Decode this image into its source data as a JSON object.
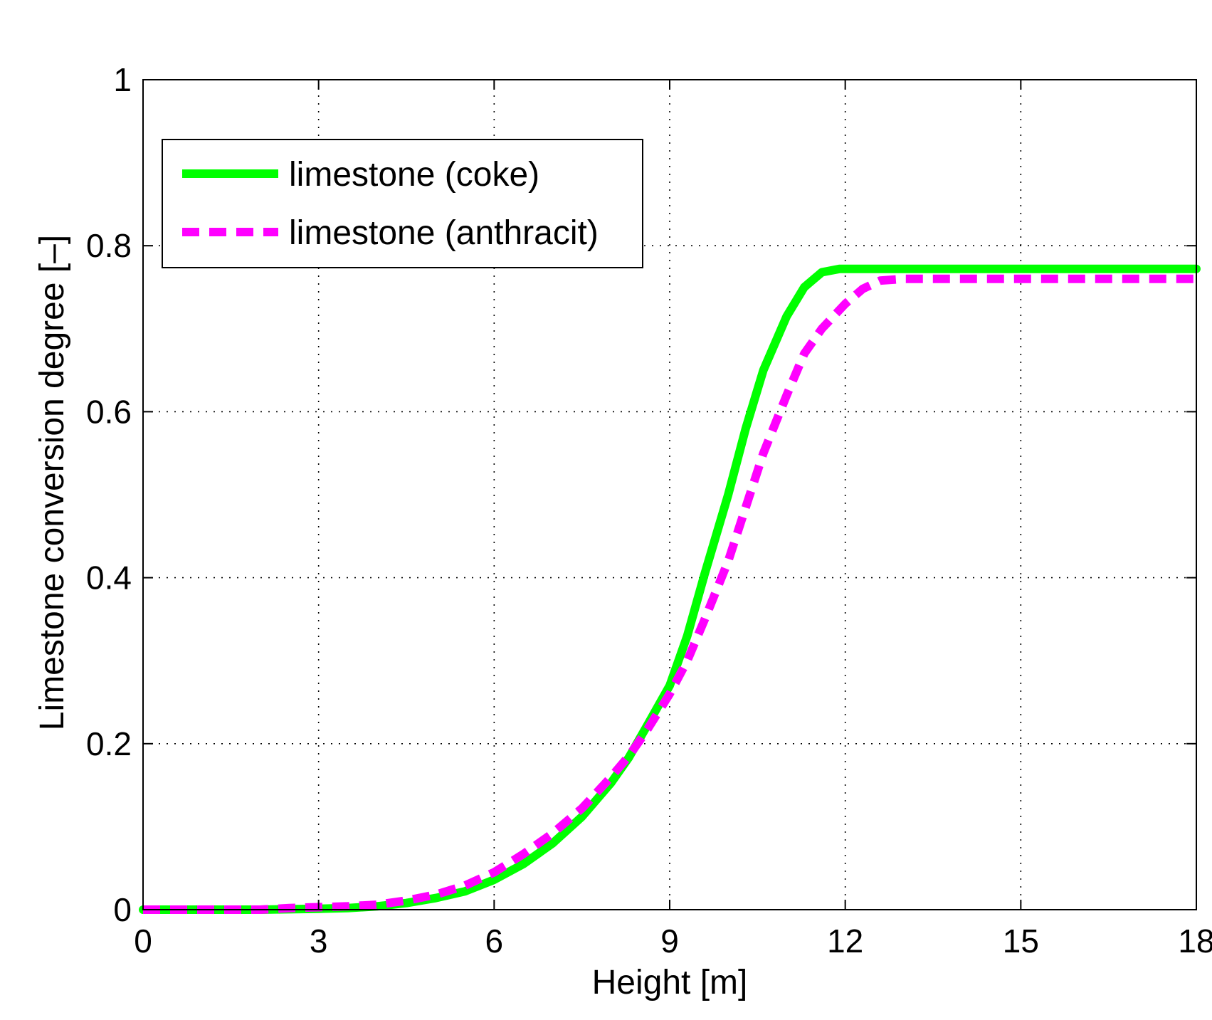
{
  "chart_data": {
    "type": "line",
    "xlabel": "Height [m]",
    "ylabel": "Limestone conversion degree [–]",
    "xlim": [
      0,
      18
    ],
    "ylim": [
      0,
      1
    ],
    "xticks": [
      0,
      3,
      6,
      9,
      12,
      15,
      18
    ],
    "xtick_labels": [
      "0",
      "3",
      "6",
      "9",
      "12",
      "15",
      "18"
    ],
    "yticks": [
      0,
      0.2,
      0.4,
      0.6,
      0.8,
      1
    ],
    "ytick_labels": [
      "0",
      "0.2",
      "0.4",
      "0.6",
      "0.8",
      "1"
    ],
    "grid": true,
    "legend_position": "top-left",
    "series": [
      {
        "name": "limestone (coke)",
        "color": "#00ff00",
        "style": "solid",
        "x": [
          0,
          1,
          2,
          3,
          3.5,
          4,
          4.5,
          5,
          5.5,
          6,
          6.5,
          7,
          7.5,
          8,
          8.3,
          8.6,
          9,
          9.3,
          9.6,
          10,
          10.3,
          10.6,
          11,
          11.3,
          11.6,
          11.9,
          12.5,
          13,
          14,
          15,
          16,
          17,
          18
        ],
        "y": [
          0,
          0,
          0,
          0.001,
          0.002,
          0.004,
          0.008,
          0.014,
          0.022,
          0.036,
          0.055,
          0.08,
          0.112,
          0.153,
          0.183,
          0.22,
          0.27,
          0.33,
          0.405,
          0.5,
          0.58,
          0.65,
          0.715,
          0.75,
          0.768,
          0.772,
          0.772,
          0.772,
          0.772,
          0.772,
          0.772,
          0.772,
          0.772
        ]
      },
      {
        "name": "limestone (anthracit)",
        "color": "#ff00ff",
        "style": "dashed",
        "x": [
          0,
          1,
          2,
          2.5,
          3,
          3.5,
          4,
          4.5,
          5,
          5.5,
          6,
          6.5,
          7,
          7.5,
          8,
          8.3,
          8.6,
          9,
          9.3,
          9.6,
          10,
          10.3,
          10.6,
          11,
          11.3,
          11.6,
          12,
          12.3,
          12.6,
          13,
          14,
          15,
          16,
          17,
          18
        ],
        "y": [
          0,
          0,
          0,
          0.002,
          0.003,
          0.004,
          0.006,
          0.011,
          0.018,
          0.029,
          0.045,
          0.067,
          0.092,
          0.122,
          0.16,
          0.185,
          0.215,
          0.26,
          0.3,
          0.35,
          0.42,
          0.485,
          0.55,
          0.62,
          0.67,
          0.7,
          0.73,
          0.748,
          0.758,
          0.76,
          0.76,
          0.76,
          0.76,
          0.76,
          0.76
        ]
      }
    ]
  }
}
